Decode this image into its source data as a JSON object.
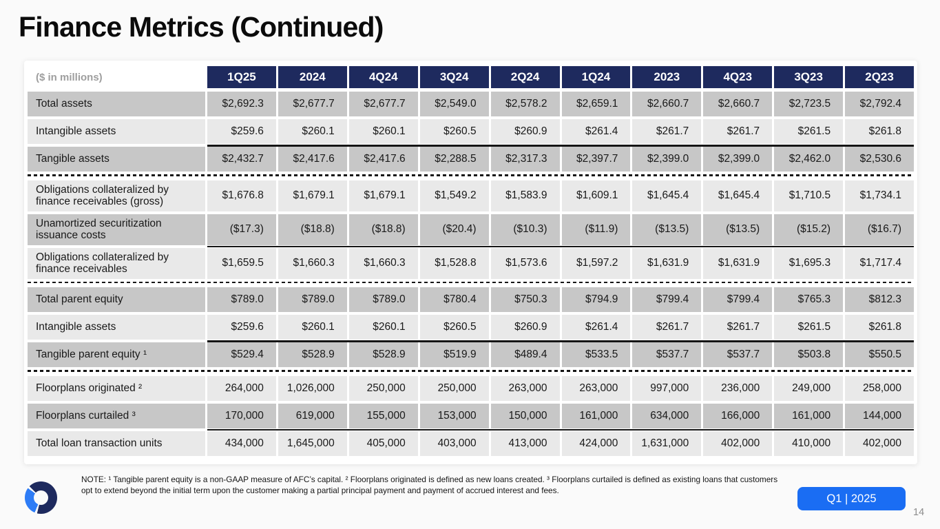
{
  "slide": {
    "title": "Finance Metrics (Continued)",
    "page_number": "14",
    "period_badge": "Q1 | 2025",
    "note": "NOTE: ¹ Tangible parent equity is a non-GAAP measure of AFC’s capital. ² Floorplans originated is defined as new loans created. ³ Floorplans curtailed is defined as existing loans that customers opt to extend beyond the initial term upon the customer making a partial principal payment and payment of accrued interest and fees.",
    "logo": "openlane-ring-logo"
  },
  "colors": {
    "header_navy": "#1e2a5e",
    "row_dark_gray": "#c7c7c7",
    "row_light_gray": "#e9e9e9",
    "accent_blue": "#1a6df3",
    "logo_light_blue": "#2e7cf6"
  },
  "table": {
    "unit_label": "($ in millions)",
    "columns": [
      "1Q25",
      "2024",
      "4Q24",
      "3Q24",
      "2Q24",
      "1Q24",
      "2023",
      "4Q23",
      "3Q23",
      "2Q23"
    ],
    "rows": [
      {
        "label": "Total assets",
        "shade": "dark",
        "tall": false,
        "topline": false,
        "dashed_below": false,
        "values": [
          "$2,692.3",
          "$2,677.7",
          "$2,677.7",
          "$2,549.0",
          "$2,578.2",
          "$2,659.1",
          "$2,660.7",
          "$2,660.7",
          "$2,723.5",
          "$2,792.4"
        ]
      },
      {
        "label": "Intangible assets",
        "shade": "light",
        "tall": false,
        "topline": false,
        "dashed_below": false,
        "values": [
          "$259.6",
          "$260.1",
          "$260.1",
          "$260.5",
          "$260.9",
          "$261.4",
          "$261.7",
          "$261.7",
          "$261.5",
          "$261.8"
        ]
      },
      {
        "label": "Tangible assets",
        "shade": "dark",
        "tall": false,
        "topline": true,
        "dashed_below": true,
        "values": [
          "$2,432.7",
          "$2,417.6",
          "$2,417.6",
          "$2,288.5",
          "$2,317.3",
          "$2,397.7",
          "$2,399.0",
          "$2,399.0",
          "$2,462.0",
          "$2,530.6"
        ]
      },
      {
        "label": "Obligations collateralized by finance receivables (gross)",
        "shade": "light",
        "tall": true,
        "topline": false,
        "dashed_below": false,
        "values": [
          "$1,676.8",
          "$1,679.1",
          "$1,679.1",
          "$1,549.2",
          "$1,583.9",
          "$1,609.1",
          "$1,645.4",
          "$1,645.4",
          "$1,710.5",
          "$1,734.1"
        ]
      },
      {
        "label": "Unamortized securitization issuance costs",
        "shade": "dark",
        "tall": true,
        "topline": false,
        "dashed_below": false,
        "values": [
          "($17.3)",
          "($18.8)",
          "($18.8)",
          "($20.4)",
          "($10.3)",
          "($11.9)",
          "($13.5)",
          "($13.5)",
          "($15.2)",
          "($16.7)"
        ]
      },
      {
        "label": "Obligations collateralized by finance receivables",
        "shade": "light",
        "tall": true,
        "topline": true,
        "dashed_below": true,
        "values": [
          "$1,659.5",
          "$1,660.3",
          "$1,660.3",
          "$1,528.8",
          "$1,573.6",
          "$1,597.2",
          "$1,631.9",
          "$1,631.9",
          "$1,695.3",
          "$1,717.4"
        ]
      },
      {
        "label": "Total parent equity",
        "shade": "dark",
        "tall": false,
        "topline": false,
        "dashed_below": false,
        "values": [
          "$789.0",
          "$789.0",
          "$789.0",
          "$780.4",
          "$750.3",
          "$794.9",
          "$799.4",
          "$799.4",
          "$765.3",
          "$812.3"
        ]
      },
      {
        "label": "Intangible assets",
        "shade": "light",
        "tall": false,
        "topline": false,
        "dashed_below": false,
        "values": [
          "$259.6",
          "$260.1",
          "$260.1",
          "$260.5",
          "$260.9",
          "$261.4",
          "$261.7",
          "$261.7",
          "$261.5",
          "$261.8"
        ]
      },
      {
        "label": "Tangible parent equity ¹",
        "shade": "dark",
        "tall": false,
        "topline": true,
        "dashed_below": true,
        "values": [
          "$529.4",
          "$528.9",
          "$528.9",
          "$519.9",
          "$489.4",
          "$533.5",
          "$537.7",
          "$537.7",
          "$503.8",
          "$550.5"
        ]
      },
      {
        "label": "Floorplans originated ²",
        "shade": "light",
        "tall": false,
        "topline": false,
        "dashed_below": false,
        "values": [
          "264,000",
          "1,026,000",
          "250,000",
          "250,000",
          "263,000",
          "263,000",
          "997,000",
          "236,000",
          "249,000",
          "258,000"
        ]
      },
      {
        "label": "Floorplans curtailed ³",
        "shade": "dark",
        "tall": false,
        "topline": false,
        "dashed_below": false,
        "values": [
          "170,000",
          "619,000",
          "155,000",
          "153,000",
          "150,000",
          "161,000",
          "634,000",
          "166,000",
          "161,000",
          "144,000"
        ]
      },
      {
        "label": "Total loan transaction units",
        "shade": "light",
        "tall": false,
        "topline": true,
        "dashed_below": false,
        "values": [
          "434,000",
          "1,645,000",
          "405,000",
          "403,000",
          "413,000",
          "424,000",
          "1,631,000",
          "402,000",
          "410,000",
          "402,000"
        ]
      }
    ]
  }
}
